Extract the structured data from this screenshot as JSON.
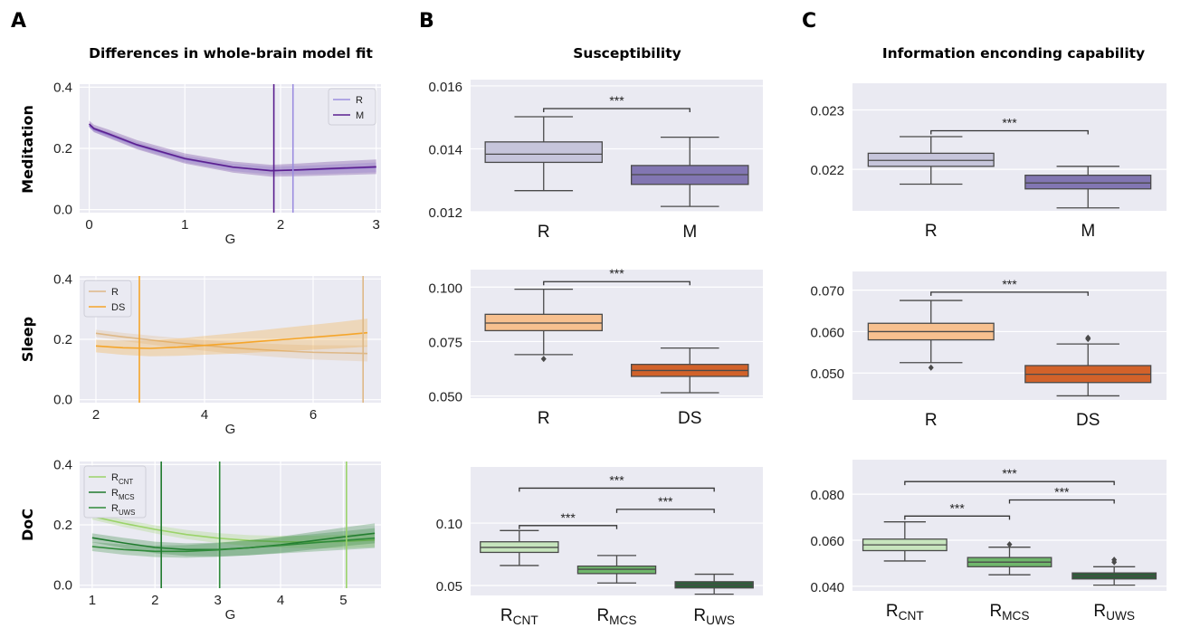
{
  "figure": {
    "panels": [
      {
        "letter": "A",
        "title": "Differences in whole-brain model fit"
      },
      {
        "letter": "B",
        "title": "Susceptibility"
      },
      {
        "letter": "C",
        "title": "Information enconding capability"
      }
    ],
    "rows": [
      "Meditation",
      "Sleep",
      "DoC"
    ]
  },
  "chart_data": [
    {
      "id": "A-meditation",
      "type": "line",
      "xlabel": "G",
      "ylabel": "",
      "xlim": [
        -0.1,
        3.05
      ],
      "ylim": [
        -0.01,
        0.41
      ],
      "xticks": [
        0,
        1,
        2,
        3
      ],
      "yticks": [
        0.0,
        0.2,
        0.4
      ],
      "x": [
        0,
        0.05,
        0.2,
        0.5,
        1.0,
        1.5,
        1.9,
        2.2,
        2.5,
        3.0
      ],
      "series": [
        {
          "name": "R",
          "color": "#9d8fe0",
          "values": [
            0.275,
            0.262,
            0.245,
            0.21,
            0.165,
            0.138,
            0.128,
            0.129,
            0.132,
            0.138
          ],
          "band": 0.012
        },
        {
          "name": "M",
          "color": "#5b1f8f",
          "values": [
            0.28,
            0.265,
            0.248,
            0.212,
            0.167,
            0.139,
            0.127,
            0.13,
            0.134,
            0.14
          ],
          "band": 0.018
        }
      ],
      "vlines": [
        {
          "series": "R",
          "x": 2.13
        },
        {
          "series": "M",
          "x": 1.93
        }
      ],
      "legend": "top-right",
      "grid": true
    },
    {
      "id": "A-sleep",
      "type": "line",
      "xlabel": "G",
      "ylabel": "",
      "xlim": [
        1.7,
        7.25
      ],
      "ylim": [
        -0.01,
        0.41
      ],
      "xticks": [
        2,
        4,
        6
      ],
      "yticks": [
        0.0,
        0.2,
        0.4
      ],
      "x": [
        2,
        2.5,
        3,
        3.5,
        4,
        4.5,
        5,
        5.5,
        6,
        6.5,
        7
      ],
      "series": [
        {
          "name": "R",
          "color": "#deb887",
          "values": [
            0.22,
            0.208,
            0.198,
            0.188,
            0.18,
            0.172,
            0.166,
            0.161,
            0.157,
            0.155,
            0.153
          ],
          "band": 0.02
        },
        {
          "name": "DS",
          "color": "#f5a52a",
          "values": [
            0.178,
            0.172,
            0.17,
            0.174,
            0.18,
            0.186,
            0.193,
            0.2,
            0.207,
            0.214,
            0.222
          ],
          "band": 0.035
        }
      ],
      "vlines": [
        {
          "series": "R",
          "x": 6.92
        },
        {
          "series": "DS",
          "x": 2.8
        }
      ],
      "legend": "top-left",
      "grid": true
    },
    {
      "id": "A-doc",
      "type": "line",
      "xlabel": "G",
      "ylabel": "",
      "xlim": [
        0.8,
        5.6
      ],
      "ylim": [
        -0.01,
        0.41
      ],
      "xticks": [
        1,
        2,
        3,
        4,
        5
      ],
      "yticks": [
        0.0,
        0.2,
        0.4
      ],
      "x": [
        1,
        1.5,
        2,
        2.5,
        3,
        3.5,
        4,
        4.5,
        5,
        5.5
      ],
      "series": [
        {
          "name": "R_CNT",
          "label_main": "R",
          "label_sub": "CNT",
          "color": "#9bd36a",
          "values": [
            0.228,
            0.205,
            0.185,
            0.168,
            0.156,
            0.148,
            0.144,
            0.143,
            0.145,
            0.15
          ],
          "band": 0.018
        },
        {
          "name": "R_MCS",
          "label_main": "R",
          "label_sub": "MCS",
          "color": "#1f7a2e",
          "values": [
            0.157,
            0.14,
            0.125,
            0.118,
            0.118,
            0.124,
            0.134,
            0.147,
            0.16,
            0.172
          ],
          "band": 0.025
        },
        {
          "name": "R_UWS",
          "label_main": "R",
          "label_sub": "UWS",
          "color": "#2f8a3a",
          "values": [
            0.128,
            0.118,
            0.112,
            0.112,
            0.117,
            0.124,
            0.132,
            0.14,
            0.148,
            0.156
          ],
          "band": 0.025
        }
      ],
      "vlines": [
        {
          "series": "R_CNT",
          "x": 5.05
        },
        {
          "series": "R_MCS",
          "x": 2.1
        },
        {
          "series": "R_UWS",
          "x": 3.03
        }
      ],
      "legend": "top-left",
      "grid": true
    },
    {
      "id": "B-meditation",
      "type": "box",
      "ylim": [
        0.012,
        0.0162
      ],
      "yticks": [
        0.012,
        0.014,
        0.016
      ],
      "ytick_labels": [
        "0.012",
        "0.014",
        "0.016"
      ],
      "categories": [
        {
          "label": "R",
          "color": "#c6c5db"
        },
        {
          "label": "M",
          "color": "#8276b2"
        }
      ],
      "boxes": [
        {
          "whislo": 0.01267,
          "q1": 0.01357,
          "med": 0.01383,
          "q3": 0.01422,
          "whishi": 0.01502,
          "fliers": []
        },
        {
          "whislo": 0.01217,
          "q1": 0.01287,
          "med": 0.01318,
          "q3": 0.01347,
          "whishi": 0.01437,
          "fliers": []
        }
      ],
      "significance": [
        {
          "from": 0,
          "to": 1,
          "y": 0.01528,
          "label": "***"
        }
      ]
    },
    {
      "id": "B-sleep",
      "type": "box",
      "ylim": [
        0.049,
        0.108
      ],
      "yticks": [
        0.05,
        0.075,
        0.1
      ],
      "ytick_labels": [
        "0.050",
        "0.075",
        "0.100"
      ],
      "categories": [
        {
          "label": "R",
          "color": "#f7c08f"
        },
        {
          "label": "DS",
          "color": "#d2622a"
        }
      ],
      "boxes": [
        {
          "whislo": 0.069,
          "q1": 0.08,
          "med": 0.0835,
          "q3": 0.0875,
          "whishi": 0.099,
          "fliers": [
            0.067
          ]
        },
        {
          "whislo": 0.0515,
          "q1": 0.059,
          "med": 0.0617,
          "q3": 0.0645,
          "whishi": 0.072,
          "fliers": []
        }
      ],
      "significance": [
        {
          "from": 0,
          "to": 1,
          "y": 0.1025,
          "label": "***"
        }
      ]
    },
    {
      "id": "B-doc",
      "type": "box",
      "ylim": [
        0.042,
        0.145
      ],
      "yticks": [
        0.05,
        0.1
      ],
      "ytick_labels": [
        "0.05",
        "0.10"
      ],
      "categories": [
        {
          "label": "R_CNT",
          "label_main": "R",
          "label_sub": "CNT",
          "color": "#c7e5bd"
        },
        {
          "label": "R_MCS",
          "label_main": "R",
          "label_sub": "MCS",
          "color": "#6fb66b"
        },
        {
          "label": "R_UWS",
          "label_main": "R",
          "label_sub": "UWS",
          "color": "#2c5f38"
        }
      ],
      "boxes": [
        {
          "whislo": 0.066,
          "q1": 0.0765,
          "med": 0.0805,
          "q3": 0.085,
          "whishi": 0.094,
          "fliers": []
        },
        {
          "whislo": 0.052,
          "q1": 0.0595,
          "med": 0.063,
          "q3": 0.0655,
          "whishi": 0.074,
          "fliers": []
        },
        {
          "whislo": 0.043,
          "q1": 0.048,
          "med": 0.0505,
          "q3": 0.053,
          "whishi": 0.059,
          "fliers": []
        }
      ],
      "significance": [
        {
          "from": 0,
          "to": 1,
          "y": 0.098,
          "label": "***"
        },
        {
          "from": 1,
          "to": 2,
          "y": 0.111,
          "label": "***"
        },
        {
          "from": 0,
          "to": 2,
          "y": 0.128,
          "label": "***"
        }
      ]
    },
    {
      "id": "C-meditation",
      "type": "box",
      "ylim": [
        0.0213,
        0.02345
      ],
      "yticks": [
        0.022,
        0.023
      ],
      "ytick_labels": [
        "0.022",
        "0.023"
      ],
      "categories": [
        {
          "label": "R",
          "color": "#c6c5db"
        },
        {
          "label": "M",
          "color": "#8276b2"
        }
      ],
      "boxes": [
        {
          "whislo": 0.02175,
          "q1": 0.02205,
          "med": 0.02215,
          "q3": 0.02227,
          "whishi": 0.02255,
          "fliers": []
        },
        {
          "whislo": 0.02135,
          "q1": 0.02167,
          "med": 0.02177,
          "q3": 0.0219,
          "whishi": 0.02205,
          "fliers": []
        }
      ],
      "significance": [
        {
          "from": 0,
          "to": 1,
          "y": 0.02265,
          "label": "***"
        }
      ]
    },
    {
      "id": "C-sleep",
      "type": "box",
      "ylim": [
        0.0435,
        0.0745
      ],
      "yticks": [
        0.05,
        0.06,
        0.07
      ],
      "ytick_labels": [
        "0.050",
        "0.060",
        "0.070"
      ],
      "categories": [
        {
          "label": "R",
          "color": "#f7c08f"
        },
        {
          "label": "DS",
          "color": "#d2622a"
        }
      ],
      "boxes": [
        {
          "whislo": 0.0525,
          "q1": 0.058,
          "med": 0.06,
          "q3": 0.062,
          "whishi": 0.0675,
          "fliers": [
            0.0513
          ]
        },
        {
          "whislo": 0.0445,
          "q1": 0.0477,
          "med": 0.0497,
          "q3": 0.0518,
          "whishi": 0.057,
          "fliers": [
            0.0582,
            0.0585
          ]
        }
      ],
      "significance": [
        {
          "from": 0,
          "to": 1,
          "y": 0.0695,
          "label": "***"
        }
      ]
    },
    {
      "id": "C-doc",
      "type": "box",
      "ylim": [
        0.038,
        0.095
      ],
      "yticks": [
        0.04,
        0.06,
        0.08
      ],
      "ytick_labels": [
        "0.040",
        "0.060",
        "0.080"
      ],
      "categories": [
        {
          "label": "R_CNT",
          "label_main": "R",
          "label_sub": "CNT",
          "color": "#c7e5bd"
        },
        {
          "label": "R_MCS",
          "label_main": "R",
          "label_sub": "MCS",
          "color": "#6fb66b"
        },
        {
          "label": "R_UWS",
          "label_main": "R",
          "label_sub": "UWS",
          "color": "#2c5f38"
        }
      ],
      "boxes": [
        {
          "whislo": 0.051,
          "q1": 0.0555,
          "med": 0.058,
          "q3": 0.0605,
          "whishi": 0.068,
          "fliers": []
        },
        {
          "whislo": 0.045,
          "q1": 0.0485,
          "med": 0.0505,
          "q3": 0.0525,
          "whishi": 0.057,
          "fliers": [
            0.0582
          ]
        },
        {
          "whislo": 0.0405,
          "q1": 0.0432,
          "med": 0.0445,
          "q3": 0.0458,
          "whishi": 0.0485,
          "fliers": [
            0.0505,
            0.0515
          ]
        }
      ],
      "significance": [
        {
          "from": 0,
          "to": 1,
          "y": 0.0705,
          "label": "***"
        },
        {
          "from": 1,
          "to": 2,
          "y": 0.0775,
          "label": "***"
        },
        {
          "from": 0,
          "to": 2,
          "y": 0.0855,
          "label": "***"
        }
      ]
    }
  ]
}
